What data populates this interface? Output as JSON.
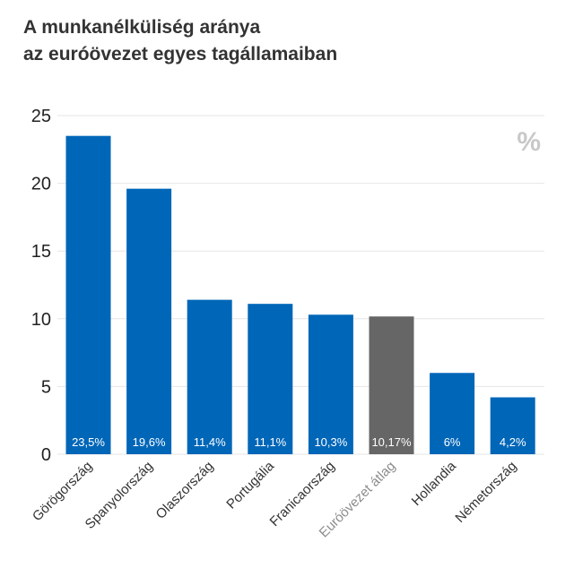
{
  "title": {
    "line1": "A munkanélküliség aránya",
    "line2": "az euróövezet egyes tagállamaiban"
  },
  "unit_label": "%",
  "colors": {
    "bar": "#0066b8",
    "average_bar": "#666666",
    "grid": "#e6e6e6"
  },
  "chart_data": {
    "type": "bar",
    "title": "A munkanélküliség aránya az euróövezet egyes tagállamaiban",
    "xlabel": "",
    "ylabel": "",
    "ylim": [
      0,
      25
    ],
    "yticks": [
      "0",
      "5",
      "10",
      "15",
      "20",
      "25"
    ],
    "grid": true,
    "categories": [
      "Görögország",
      "Spanyolország",
      "Olaszország",
      "Portugália",
      "Franicaország",
      "Euróövezet átlag",
      "Hollandia",
      "Németország"
    ],
    "values": [
      23.5,
      19.6,
      11.4,
      11.1,
      10.3,
      10.17,
      6,
      4.2
    ],
    "data_labels": [
      "23,5%",
      "19,6%",
      "11,4%",
      "11,1%",
      "10,3%",
      "10,17%",
      "6%",
      "4,2%"
    ],
    "highlight_category": "Euróövezet átlag"
  }
}
